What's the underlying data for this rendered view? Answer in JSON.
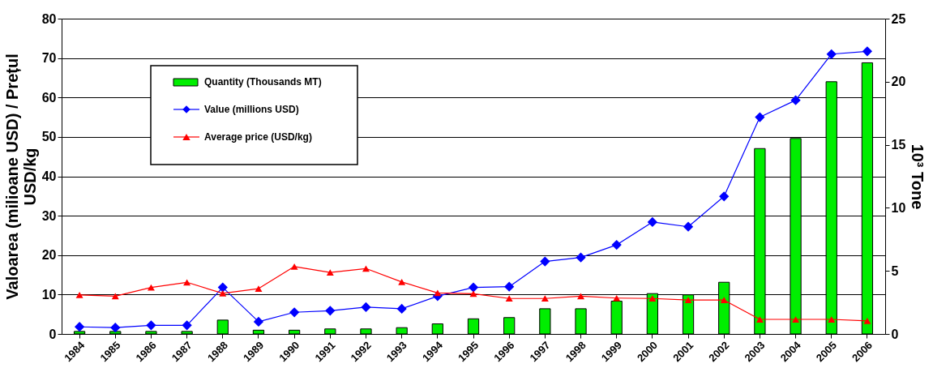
{
  "chart_data": {
    "type": "bar",
    "categories": [
      "1984",
      "1985",
      "1986",
      "1987",
      "1988",
      "1989",
      "1990",
      "1991",
      "1992",
      "1993",
      "1994",
      "1995",
      "1996",
      "1997",
      "1998",
      "1999",
      "2000",
      "2001",
      "2002",
      "2003",
      "2004",
      "2005",
      "2006"
    ],
    "ylabel": "Valoarea (milioane USD) / Prețul USD/kg",
    "y2label": "10³ Tone",
    "ylim": [
      0,
      80
    ],
    "yticks": [
      0,
      10,
      20,
      30,
      40,
      50,
      60,
      70,
      80
    ],
    "y2lim": [
      0,
      25
    ],
    "y2ticks": [
      0,
      5,
      10,
      15,
      20,
      25
    ],
    "grid": "y",
    "legend": "top left",
    "series": [
      {
        "name": "Quantity (Thousands MT)",
        "axis": "y2",
        "color": "#00ee00",
        "values": [
          0.2,
          0.2,
          0.2,
          0.2,
          1.1,
          0.3,
          0.3,
          0.4,
          0.4,
          0.5,
          0.8,
          1.2,
          1.3,
          2.0,
          2.0,
          2.6,
          3.2,
          3.1,
          4.1,
          14.7,
          15.5,
          20.0,
          21.5
        ]
      },
      {
        "name": "Value (millions USD)",
        "type": "line",
        "color": "#0000ff",
        "marker": "diamond",
        "values": [
          1.8,
          1.6,
          2.2,
          2.2,
          11.8,
          3.1,
          5.5,
          5.9,
          6.8,
          6.4,
          9.6,
          11.8,
          12.0,
          18.4,
          19.4,
          22.6,
          28.4,
          27.2,
          34.9,
          55.0,
          59.3,
          71.0,
          71.7
        ]
      },
      {
        "name": "Average price  (USD/kg)",
        "type": "line",
        "color": "#ff0000",
        "marker": "triangle",
        "values": [
          9.9,
          9.6,
          11.8,
          13.1,
          10.3,
          11.5,
          17.1,
          15.6,
          16.6,
          13.2,
          10.4,
          10.2,
          9.0,
          9.0,
          9.6,
          9.1,
          9.0,
          8.6,
          8.6,
          3.7,
          3.7,
          3.7,
          3.3
        ]
      }
    ]
  }
}
